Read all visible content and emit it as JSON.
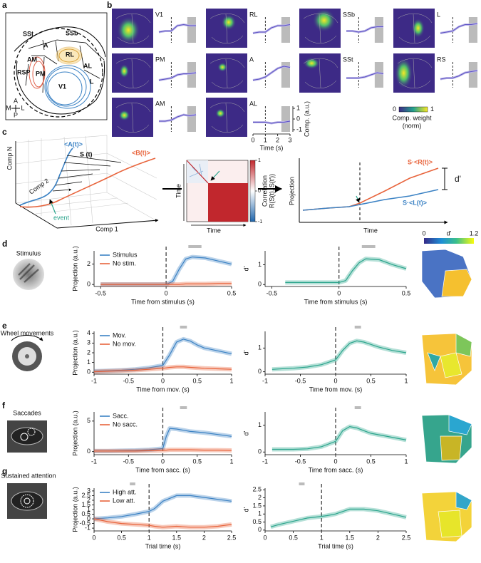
{
  "panel_labels": [
    "a",
    "b",
    "c",
    "d",
    "e",
    "f",
    "g"
  ],
  "panel_a": {
    "areas": [
      "SSt",
      "SSb",
      "A",
      "RL",
      "AM",
      "AL",
      "RSP",
      "PM",
      "V1",
      "L"
    ],
    "compass": [
      "A",
      "M",
      "L",
      "P"
    ]
  },
  "panel_b": {
    "x": [
      0,
      0.5,
      1,
      1.5,
      2,
      2.5,
      3
    ],
    "xlim": [
      0,
      3
    ],
    "ylim": [
      -1.2,
      1.2
    ],
    "xticks": [
      0,
      1,
      2,
      3
    ],
    "yticks": [
      -1,
      0,
      1
    ],
    "xlabel": "Time (s)",
    "ylabel": "Comp. (a.u.)",
    "vline": 1,
    "shade": [
      2.3,
      3
    ],
    "traces": [
      {
        "name": "V1",
        "values": [
          -0.2,
          -0.1,
          -0.1,
          0.4,
          0.5,
          0.4,
          0.4
        ]
      },
      {
        "name": "RL",
        "values": [
          -0.3,
          -0.2,
          -0.2,
          0.2,
          0.4,
          0.4,
          0.5
        ]
      },
      {
        "name": "SSb",
        "values": [
          -0.1,
          -0.1,
          -0.2,
          -0.1,
          0.2,
          0.3,
          0.3
        ]
      },
      {
        "name": "L",
        "values": [
          -0.3,
          -0.2,
          -0.1,
          0.3,
          0.5,
          0.5,
          0.6
        ]
      },
      {
        "name": "PM",
        "values": [
          -0.5,
          -0.4,
          -0.3,
          0.0,
          0.1,
          0.1,
          0.2
        ]
      },
      {
        "name": "A",
        "values": [
          -0.5,
          -0.4,
          -0.2,
          0.2,
          0.6,
          0.8,
          0.7
        ]
      },
      {
        "name": "SSt",
        "values": [
          -0.3,
          -0.3,
          -0.3,
          -0.2,
          0.0,
          0.2,
          0.1
        ]
      },
      {
        "name": "RS",
        "values": [
          -0.4,
          -0.3,
          -0.3,
          -0.1,
          0.2,
          0.3,
          0.4
        ]
      },
      {
        "name": "AM",
        "values": [
          -0.2,
          -0.2,
          -0.1,
          0.2,
          0.4,
          0.3,
          0.4
        ]
      },
      {
        "name": "AL",
        "values": [
          -0.3,
          -0.3,
          -0.3,
          -0.4,
          -0.3,
          -0.3,
          -0.2
        ]
      }
    ],
    "colorbar": {
      "lim": [
        0,
        1
      ],
      "ticks": [
        0,
        1
      ],
      "label": "Comp. weight",
      "sublabel": "(norm)"
    }
  },
  "panel_c": {
    "axes": [
      "Comp N",
      "Comp 2",
      "Comp 1"
    ],
    "mean_a": "<A(t)>",
    "signal": "S (t)",
    "mean_b": "<B(t)>",
    "event": "event",
    "matrix_ylabel": "Time",
    "matrix_xlabel": "Time",
    "corr_label": "Correlation",
    "corr_formula": "R(S(t), S(t'))",
    "corr_lim": [
      -1,
      1
    ],
    "corr_ticks": [
      1,
      0,
      -1
    ],
    "proj_ylabel": "Projection",
    "proj_xlabel": "Time",
    "proj_r": "S·<R(t)>",
    "proj_l": "S·<L(t)>",
    "dprime": "d'"
  },
  "rows": [
    {
      "label": "Stimulus"
    },
    {
      "label": "Wheel movements"
    },
    {
      "label": "Saccades"
    },
    {
      "label": "Sustained attention"
    }
  ],
  "dprime_colorbar": {
    "lim": [
      0,
      1.2
    ],
    "ticks": [
      0,
      1.2
    ],
    "label": "d'"
  },
  "chart_data": [
    {
      "type": "line",
      "x": [
        -0.5,
        -0.4,
        -0.3,
        -0.2,
        -0.1,
        0,
        0.05,
        0.1,
        0.15,
        0.2,
        0.3,
        0.4,
        0.5
      ],
      "series": [
        {
          "name": "Stimulus",
          "color": "#3b82c4",
          "values": [
            0,
            0,
            0,
            0,
            0,
            0,
            0.3,
            1.5,
            2.5,
            2.7,
            2.6,
            2.3,
            2.0
          ]
        },
        {
          "name": "No stim.",
          "color": "#e8643c",
          "values": [
            0,
            0,
            0,
            0,
            0,
            0,
            0,
            0,
            0.05,
            0.05,
            0.05,
            0.1,
            0.1
          ]
        }
      ],
      "xlim": [
        -0.55,
        0.5
      ],
      "ylim": [
        -0.2,
        3.3
      ],
      "xticks": [
        -0.5,
        0,
        0.5
      ],
      "yticks": [
        0,
        2
      ],
      "xlabel": "Time from stimulus (s)",
      "ylabel": "Projection (a.u.)",
      "vline": 0,
      "marker": [
        0.17,
        0.27
      ]
    },
    {
      "type": "line",
      "x": [
        -0.4,
        -0.3,
        -0.2,
        -0.1,
        0,
        0.05,
        0.1,
        0.15,
        0.2,
        0.3,
        0.4,
        0.5
      ],
      "values": [
        0.1,
        0.1,
        0.1,
        0.1,
        0.1,
        0.2,
        0.7,
        1.1,
        1.3,
        1.25,
        1.0,
        0.8
      ],
      "color": "#2ca58d",
      "xlim": [
        -0.55,
        0.5
      ],
      "ylim": [
        -0.1,
        1.7
      ],
      "xticks": [
        -0.5,
        0,
        0.5
      ],
      "yticks": [
        0,
        1
      ],
      "xlabel": "Time from stimulus (s)",
      "ylabel": "d'",
      "vline": 0,
      "marker": [
        0.17,
        0.27
      ]
    },
    {
      "type": "line",
      "x": [
        -1,
        -0.8,
        -0.6,
        -0.4,
        -0.2,
        0,
        0.1,
        0.2,
        0.3,
        0.4,
        0.5,
        0.6,
        0.8,
        1
      ],
      "series": [
        {
          "name": "Mov.",
          "color": "#3b82c4",
          "values": [
            0.1,
            0.15,
            0.2,
            0.3,
            0.45,
            0.7,
            1.8,
            3.1,
            3.4,
            3.2,
            2.8,
            2.5,
            2.2,
            1.9
          ]
        },
        {
          "name": "No mov.",
          "color": "#e8643c",
          "values": [
            0.05,
            0.1,
            0.15,
            0.2,
            0.3,
            0.4,
            0.5,
            0.55,
            0.55,
            0.5,
            0.45,
            0.4,
            0.35,
            0.3
          ]
        }
      ],
      "xlim": [
        -1,
        1
      ],
      "ylim": [
        -0.2,
        4.2
      ],
      "xticks": [
        -1,
        -0.5,
        0,
        0.5,
        1
      ],
      "yticks": [
        0,
        1,
        2,
        3,
        4
      ],
      "xlabel": "Time from mov. (s)",
      "ylabel": "Projection (a.u.)",
      "vline": 0,
      "marker": [
        0.25,
        0.35
      ]
    },
    {
      "type": "line",
      "x": [
        -0.9,
        -0.8,
        -0.6,
        -0.4,
        -0.2,
        0,
        0.1,
        0.2,
        0.3,
        0.4,
        0.5,
        0.6,
        0.8,
        1
      ],
      "values": [
        0.1,
        0.12,
        0.15,
        0.2,
        0.3,
        0.5,
        0.9,
        1.2,
        1.3,
        1.25,
        1.15,
        1.05,
        0.9,
        0.8
      ],
      "color": "#2ca58d",
      "xlim": [
        -1,
        1
      ],
      "ylim": [
        -0.1,
        1.7
      ],
      "xticks": [
        -1,
        -0.5,
        0,
        0.5,
        1
      ],
      "yticks": [
        0,
        1
      ],
      "xlabel": "Time from mov. (s)",
      "ylabel": "d'",
      "vline": 0,
      "marker": [
        0.27,
        0.36
      ]
    },
    {
      "type": "line",
      "x": [
        -1,
        -0.8,
        -0.6,
        -0.4,
        -0.2,
        0,
        0.05,
        0.1,
        0.2,
        0.3,
        0.4,
        0.6,
        0.8,
        1
      ],
      "series": [
        {
          "name": "Sacc.",
          "color": "#3b82c4",
          "values": [
            0.1,
            0.1,
            0.15,
            0.2,
            0.3,
            0.5,
            2.5,
            3.8,
            3.7,
            3.5,
            3.3,
            3.1,
            2.8,
            2.5
          ]
        },
        {
          "name": "No sacc.",
          "color": "#e8643c",
          "values": [
            0.1,
            0.1,
            0.1,
            0.1,
            0.15,
            0.2,
            0.25,
            0.3,
            0.3,
            0.3,
            0.3,
            0.25,
            0.25,
            0.2
          ]
        }
      ],
      "xlim": [
        -1,
        1
      ],
      "ylim": [
        -0.5,
        6.5
      ],
      "xticks": [
        -1,
        -0.5,
        0,
        0.5,
        1
      ],
      "yticks": [
        0,
        5
      ],
      "xlabel": "Time from sacc. (s)",
      "ylabel": "Projection (a.u.)",
      "vline": 0,
      "marker": [
        0.25,
        0.35
      ]
    },
    {
      "type": "line",
      "x": [
        -0.9,
        -0.8,
        -0.6,
        -0.4,
        -0.2,
        0,
        0.1,
        0.2,
        0.3,
        0.4,
        0.5,
        0.6,
        0.8,
        1
      ],
      "values": [
        0.1,
        0.1,
        0.1,
        0.12,
        0.2,
        0.4,
        0.8,
        0.95,
        0.9,
        0.8,
        0.7,
        0.65,
        0.55,
        0.45
      ],
      "color": "#2ca58d",
      "xlim": [
        -1,
        1
      ],
      "ylim": [
        -0.1,
        1.5
      ],
      "xticks": [
        -1,
        -0.5,
        0,
        0.5,
        1
      ],
      "yticks": [
        0,
        1
      ],
      "xlabel": "Time from sacc. (s)",
      "ylabel": "d'",
      "vline": 0,
      "marker": [
        0.27,
        0.36
      ]
    },
    {
      "type": "line",
      "x": [
        0,
        0.25,
        0.5,
        0.75,
        1,
        1.1,
        1.25,
        1.5,
        1.75,
        2,
        2.25,
        2.5
      ],
      "series": [
        {
          "name": "High att.",
          "color": "#3b82c4",
          "values": [
            0,
            0.1,
            0.25,
            0.5,
            0.8,
            1.1,
            1.9,
            2.5,
            2.5,
            2.3,
            2.1,
            1.9
          ]
        },
        {
          "name": "Low att.",
          "color": "#e8643c",
          "values": [
            0,
            -0.3,
            -0.5,
            -0.6,
            -0.7,
            -0.8,
            -0.9,
            -0.8,
            -0.9,
            -0.9,
            -0.8,
            -0.6
          ]
        }
      ],
      "xlim": [
        0,
        2.5
      ],
      "ylim": [
        -1.3,
        3.3
      ],
      "xticks": [
        0,
        0.5,
        1,
        1.5,
        2,
        2.5
      ],
      "yticks": [
        -1,
        -0.5,
        0,
        0.5,
        1,
        1.5,
        2,
        2.5,
        3
      ],
      "xlabel": "Trial time (s)",
      "ylabel": "Projection (a.u.)",
      "vline": 1,
      "marker": [
        0.65,
        0.75
      ]
    },
    {
      "type": "line",
      "x": [
        0.1,
        0.25,
        0.5,
        0.75,
        1,
        1.1,
        1.25,
        1.5,
        1.75,
        2,
        2.25,
        2.5
      ],
      "values": [
        0.2,
        0.35,
        0.55,
        0.75,
        0.85,
        0.9,
        1.0,
        1.3,
        1.3,
        1.2,
        1.0,
        0.8
      ],
      "color": "#2ca58d",
      "xlim": [
        0,
        2.5
      ],
      "ylim": [
        -0.05,
        2.6
      ],
      "xticks": [
        0,
        0.5,
        1,
        1.5,
        2,
        2.5
      ],
      "yticks": [
        0,
        0.5,
        1,
        1.5,
        2,
        2.5
      ],
      "xlabel": "Trial time (s)",
      "ylabel": "d'",
      "vline": 1,
      "marker": [
        0.6,
        0.7
      ]
    }
  ]
}
